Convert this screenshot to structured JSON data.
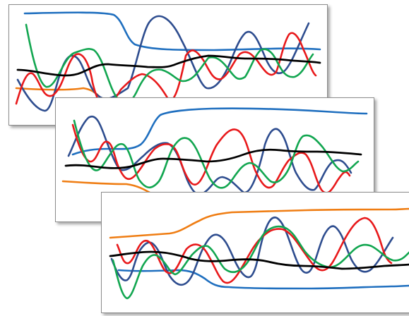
{
  "colors": {
    "blue": "#1f6fbf",
    "navy": "#2e4d8f",
    "red": "#e8191b",
    "green": "#12a650",
    "black": "#000000",
    "orange": "#ef7d13",
    "panel_border": "#8c8c8c",
    "background": "#ffffff"
  },
  "panels": [
    {
      "series": [
        {
          "color": "blue"
        },
        {
          "color": "navy"
        },
        {
          "color": "red"
        },
        {
          "color": "green"
        },
        {
          "color": "black"
        },
        {
          "color": "orange"
        }
      ]
    },
    {
      "series": [
        {
          "color": "blue"
        },
        {
          "color": "navy"
        },
        {
          "color": "red"
        },
        {
          "color": "green"
        },
        {
          "color": "black"
        },
        {
          "color": "orange"
        }
      ]
    },
    {
      "series": [
        {
          "color": "orange"
        },
        {
          "color": "navy"
        },
        {
          "color": "red"
        },
        {
          "color": "green"
        },
        {
          "color": "black"
        },
        {
          "color": "blue"
        }
      ]
    }
  ]
}
